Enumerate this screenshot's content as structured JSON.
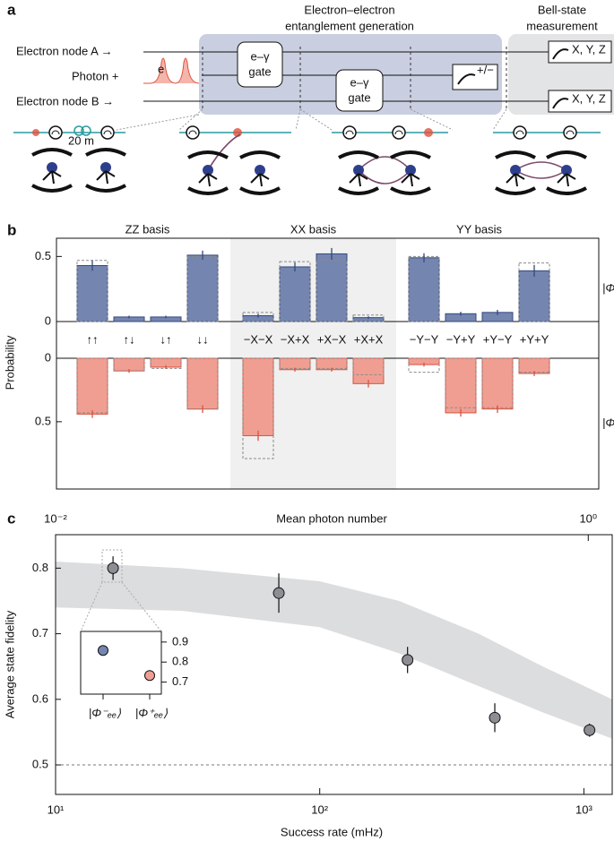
{
  "panel_labels": [
    "a",
    "b",
    "c"
  ],
  "diagram": {
    "inputs": [
      "Electron node A →",
      "Photon +",
      "Electron node B →"
    ],
    "stage_titles": [
      [
        "Electron–electron",
        "entanglement generation"
      ],
      [
        "Bell-state",
        "measurement"
      ]
    ],
    "gates": [
      [
        "e–γ",
        "gate"
      ],
      [
        "e–γ",
        "gate"
      ]
    ],
    "measurements": [
      "+/−",
      "X, Y, Z",
      "X, Y, Z"
    ],
    "photon_label": "e",
    "distance": "20 m"
  },
  "chart_data": [
    {
      "type": "bar",
      "ylabel": "Probability",
      "groups": [
        "ZZ basis",
        "XX basis",
        "YY basis"
      ],
      "shaded_group": 1,
      "categories": [
        "↑↑",
        "↑↓",
        "↓↑",
        "↓↓",
        "−X−X",
        "−X+X",
        "+X−X",
        "+X+X",
        "−Y−Y",
        "−Y+Y",
        "+Y−Y",
        "+Y+Y"
      ],
      "ylim": [
        0,
        0.64
      ],
      "yticks": [
        0,
        0.5
      ],
      "inverted": false,
      "series": [
        {
          "name": "|Φ⁻ₑₑ⟩",
          "color": "#7485b0",
          "edge_color": "#34497e",
          "values": [
            0.43,
            0.035,
            0.035,
            0.51,
            0.045,
            0.42,
            0.52,
            0.03,
            0.49,
            0.06,
            0.07,
            0.39
          ],
          "errors": [
            0.04,
            0.01,
            0.01,
            0.035,
            0.015,
            0.035,
            0.045,
            0.01,
            0.035,
            0.015,
            0.02,
            0.045
          ],
          "expected": [
            0.47,
            0,
            0,
            0.5,
            0.07,
            0.46,
            0.47,
            0.05,
            0.5,
            0,
            0,
            0.45
          ]
        }
      ]
    },
    {
      "type": "bar",
      "ylim": [
        0,
        1.03
      ],
      "yticks": [
        0,
        0.5
      ],
      "inverted": true,
      "series": [
        {
          "name": "|Φ⁺ₑₑ⟩",
          "color": "#f19e92",
          "edge_color": "#d9533f",
          "values": [
            0.44,
            0.1,
            0.07,
            0.4,
            0.61,
            0.09,
            0.09,
            0.2,
            0.05,
            0.43,
            0.4,
            0.12
          ],
          "errors": [
            0.03,
            0.015,
            0.015,
            0.03,
            0.04,
            0.015,
            0.015,
            0.03,
            0.015,
            0.03,
            0.03,
            0.02
          ],
          "expected": [
            0.43,
            0.1,
            0.08,
            0.4,
            0.79,
            0.08,
            0.08,
            0.13,
            0.11,
            0.39,
            0.39,
            0.11
          ]
        }
      ]
    },
    {
      "type": "scatter",
      "ylabel": "Average state fidelity",
      "xlabel": "Success rate (mHz)",
      "x2label": "Mean photon number",
      "log_x": true,
      "xlim": [
        10,
        1280
      ],
      "xticks": [
        {
          "value": 10,
          "label": "10¹"
        },
        {
          "value": 100,
          "label": "10²"
        },
        {
          "value": 1000,
          "label": "10³"
        }
      ],
      "x2lim": [
        0.01,
        1.23
      ],
      "x2ticks": [
        {
          "value": 0.01,
          "label": "10⁻²"
        },
        {
          "value": 1,
          "label": "10⁰"
        }
      ],
      "ylim": [
        0.455,
        0.851
      ],
      "yticks": [
        0.5,
        0.6,
        0.7,
        0.8
      ],
      "x": [
        16.5,
        70,
        215,
        460,
        1050
      ],
      "values": [
        0.8,
        0.762,
        0.66,
        0.572,
        0.553
      ],
      "errors": [
        0.018,
        0.03,
        0.02,
        0.022,
        0.01
      ],
      "color": "#8c8e93",
      "band": {
        "x": [
          10,
          30,
          100,
          200,
          400,
          700,
          1280
        ],
        "lower": [
          0.74,
          0.735,
          0.71,
          0.67,
          0.62,
          0.58,
          0.54
        ],
        "upper": [
          0.81,
          0.8,
          0.78,
          0.75,
          0.7,
          0.65,
          0.6
        ],
        "color": "#dcdddf"
      },
      "hline": 0.5
    },
    {
      "type": "scatter",
      "categories": [
        "|Φ⁻ₑₑ⟩",
        "|Φ⁺ₑₑ⟩"
      ],
      "values": [
        0.858,
        0.733
      ],
      "errors": [
        0.008,
        0.01
      ],
      "colors": [
        "#7485b0",
        "#f19e92"
      ],
      "ylim": [
        0.64,
        0.953
      ],
      "yticks": [
        0.7,
        0.8,
        0.9
      ]
    }
  ]
}
